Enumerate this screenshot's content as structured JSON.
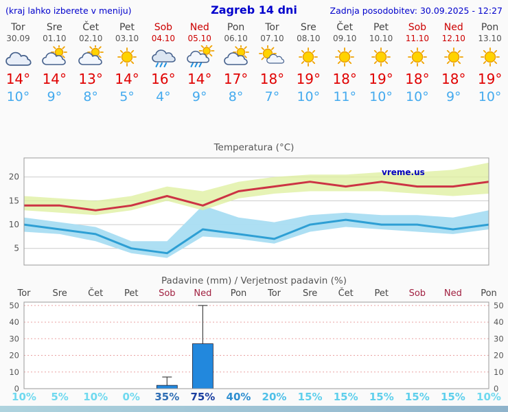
{
  "header": {
    "left_note": "(kraj lahko izberete v meniju)",
    "title": "Zagreb 14 dni",
    "updated": "Zadnja posodobitev: 30.09.2025 - 12:27"
  },
  "watermark": "vreme.us",
  "palette": {
    "header_blue": "#0000cc",
    "weekend_red": "#cc0000",
    "precip_weekend": "#a02040",
    "high_red": "#e00000",
    "low_blue": "#44aaee",
    "bar_blue": "#2288dd",
    "axis_gray": "#555555"
  },
  "days": [
    {
      "name": "Tor",
      "date": "30.09",
      "weekend": false,
      "icon": "cloudy",
      "high": "14°",
      "low": "10°",
      "prob": "10%",
      "prob_color": "#6fd9ef"
    },
    {
      "name": "Sre",
      "date": "01.10",
      "weekend": false,
      "icon": "partly-cloudy",
      "high": "14°",
      "low": "9°",
      "prob": "5%",
      "prob_color": "#6fd9ef"
    },
    {
      "name": "Čet",
      "date": "02.10",
      "weekend": false,
      "icon": "partly-cloudy",
      "high": "13°",
      "low": "8°",
      "prob": "10%",
      "prob_color": "#6fd9ef"
    },
    {
      "name": "Pet",
      "date": "03.10",
      "weekend": false,
      "icon": "sunny",
      "high": "14°",
      "low": "5°",
      "prob": "0%",
      "prob_color": "#6fd9ef"
    },
    {
      "name": "Sob",
      "date": "04.10",
      "weekend": true,
      "icon": "rain",
      "high": "16°",
      "low": "4°",
      "prob": "35%",
      "prob_color": "#2f6eb4"
    },
    {
      "name": "Ned",
      "date": "05.10",
      "weekend": true,
      "icon": "showers",
      "high": "14°",
      "low": "9°",
      "prob": "75%",
      "prob_color": "#1b3fa0"
    },
    {
      "name": "Pon",
      "date": "06.10",
      "weekend": false,
      "icon": "partly-cloudy",
      "high": "17°",
      "low": "8°",
      "prob": "40%",
      "prob_color": "#2f8fd0"
    },
    {
      "name": "Tor",
      "date": "07.10",
      "weekend": false,
      "icon": "mostly-sunny",
      "high": "18°",
      "low": "7°",
      "prob": "20%",
      "prob_color": "#4fc0e8"
    },
    {
      "name": "Sre",
      "date": "08.10",
      "weekend": false,
      "icon": "sunny",
      "high": "19°",
      "low": "10°",
      "prob": "15%",
      "prob_color": "#5ecfec"
    },
    {
      "name": "Čet",
      "date": "09.10",
      "weekend": false,
      "icon": "sunny",
      "high": "18°",
      "low": "11°",
      "prob": "15%",
      "prob_color": "#5ecfec"
    },
    {
      "name": "Pet",
      "date": "10.10",
      "weekend": false,
      "icon": "sunny",
      "high": "19°",
      "low": "10°",
      "prob": "15%",
      "prob_color": "#5ecfec"
    },
    {
      "name": "Sob",
      "date": "11.10",
      "weekend": true,
      "icon": "sunny",
      "high": "18°",
      "low": "10°",
      "prob": "15%",
      "prob_color": "#5ecfec"
    },
    {
      "name": "Ned",
      "date": "12.10",
      "weekend": true,
      "icon": "sunny",
      "high": "18°",
      "low": "9°",
      "prob": "15%",
      "prob_color": "#5ecfec"
    },
    {
      "name": "Pon",
      "date": "13.10",
      "weekend": false,
      "icon": "sunny",
      "high": "19°",
      "low": "10°",
      "prob": "10%",
      "prob_color": "#6fd9ef"
    }
  ],
  "chart_data": [
    {
      "type": "line",
      "title": "Temperatura (°C)",
      "x_labels": [
        "Tor",
        "Sre",
        "Čet",
        "Pet",
        "Sob",
        "Ned",
        "Pon",
        "Tor",
        "Sre",
        "Čet",
        "Pet",
        "Sob",
        "Ned",
        "Pon"
      ],
      "ylim": [
        1.5,
        24
      ],
      "yticks": [
        5,
        10,
        15,
        20
      ],
      "watermark": "vreme.us",
      "series": [
        {
          "name": "max",
          "color": "#cc3344",
          "values": [
            14,
            14,
            13,
            14,
            16,
            14,
            17,
            18,
            19,
            18,
            19,
            18,
            18,
            19
          ]
        },
        {
          "name": "min",
          "color": "#2e9fd4",
          "values": [
            10,
            9,
            8,
            5,
            4,
            9,
            8,
            7,
            10,
            11,
            10,
            10,
            9,
            10
          ]
        }
      ],
      "bands": [
        {
          "name": "min-range",
          "color": "#a9ddf2",
          "opacity": 0.95,
          "top": [
            11.5,
            10.5,
            9.5,
            6.5,
            6.5,
            14,
            11.5,
            10.5,
            12,
            12.5,
            12,
            12,
            11.5,
            13
          ],
          "bottom": [
            8.5,
            8,
            6.5,
            4,
            3,
            7.5,
            7,
            6,
            8.5,
            9.5,
            9,
            8.5,
            8,
            9
          ]
        },
        {
          "name": "max-range",
          "color": "#dff0a0",
          "opacity": 0.78,
          "top": [
            16,
            15.5,
            15,
            16,
            18,
            17,
            19,
            20,
            20.5,
            20.5,
            21,
            21,
            21.5,
            23
          ],
          "bottom": [
            13,
            12.5,
            12,
            13,
            15,
            13,
            15.5,
            16.5,
            17,
            17,
            17,
            16.5,
            16,
            16.5
          ]
        }
      ]
    },
    {
      "type": "bar",
      "title": "Padavine (mm) / Verjetnost padavin (%)",
      "x_labels": [
        "Tor",
        "Sre",
        "Čet",
        "Pet",
        "Sob",
        "Ned",
        "Pon",
        "Tor",
        "Sre",
        "Čet",
        "Pet",
        "Sob",
        "Ned",
        "Pon"
      ],
      "ylim": [
        0,
        52
      ],
      "yticks": [
        0,
        10,
        20,
        30,
        40,
        50
      ],
      "values": [
        0,
        0,
        0,
        0,
        2,
        27,
        0,
        0,
        0,
        0,
        0,
        0,
        0,
        0
      ],
      "whisker_max": [
        0,
        0,
        0,
        0,
        7,
        50,
        0,
        0,
        0,
        0,
        0,
        0,
        0,
        0
      ],
      "probabilities": [
        "10%",
        "5%",
        "10%",
        "0%",
        "35%",
        "75%",
        "40%",
        "20%",
        "15%",
        "15%",
        "15%",
        "15%",
        "15%",
        "10%"
      ]
    }
  ]
}
